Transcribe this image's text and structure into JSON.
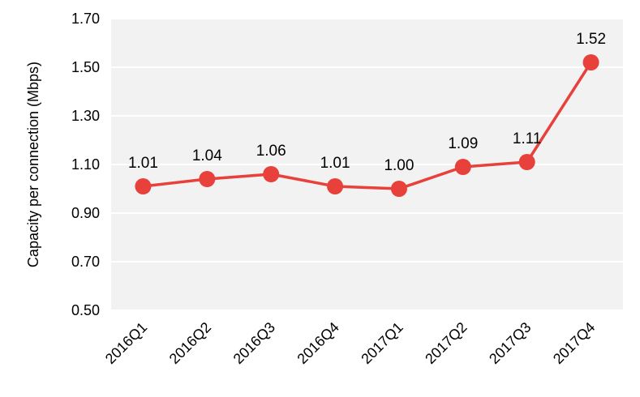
{
  "chart_data": {
    "type": "line",
    "categories": [
      "2016Q1",
      "2016Q2",
      "2016Q3",
      "2016Q4",
      "2017Q1",
      "2017Q2",
      "2017Q3",
      "2017Q4"
    ],
    "series": [
      {
        "values": [
          1.01,
          1.04,
          1.06,
          1.01,
          1.0,
          1.09,
          1.11,
          1.52
        ]
      }
    ],
    "data_labels": [
      "1.01",
      "1.04",
      "1.06",
      "1.01",
      "1.00",
      "1.09",
      "1.11",
      "1.52"
    ],
    "yticks": [
      "0.50",
      "0.70",
      "0.90",
      "1.10",
      "1.30",
      "1.50",
      "1.70"
    ],
    "ylim": [
      0.5,
      1.7
    ],
    "xlabel": "",
    "ylabel": "Capacity per connection (Mbps)",
    "grid": "horizontal",
    "colors": {
      "series": "#e8403a",
      "plot_background": "#f2f2f2",
      "grid": "#ffffff"
    }
  }
}
